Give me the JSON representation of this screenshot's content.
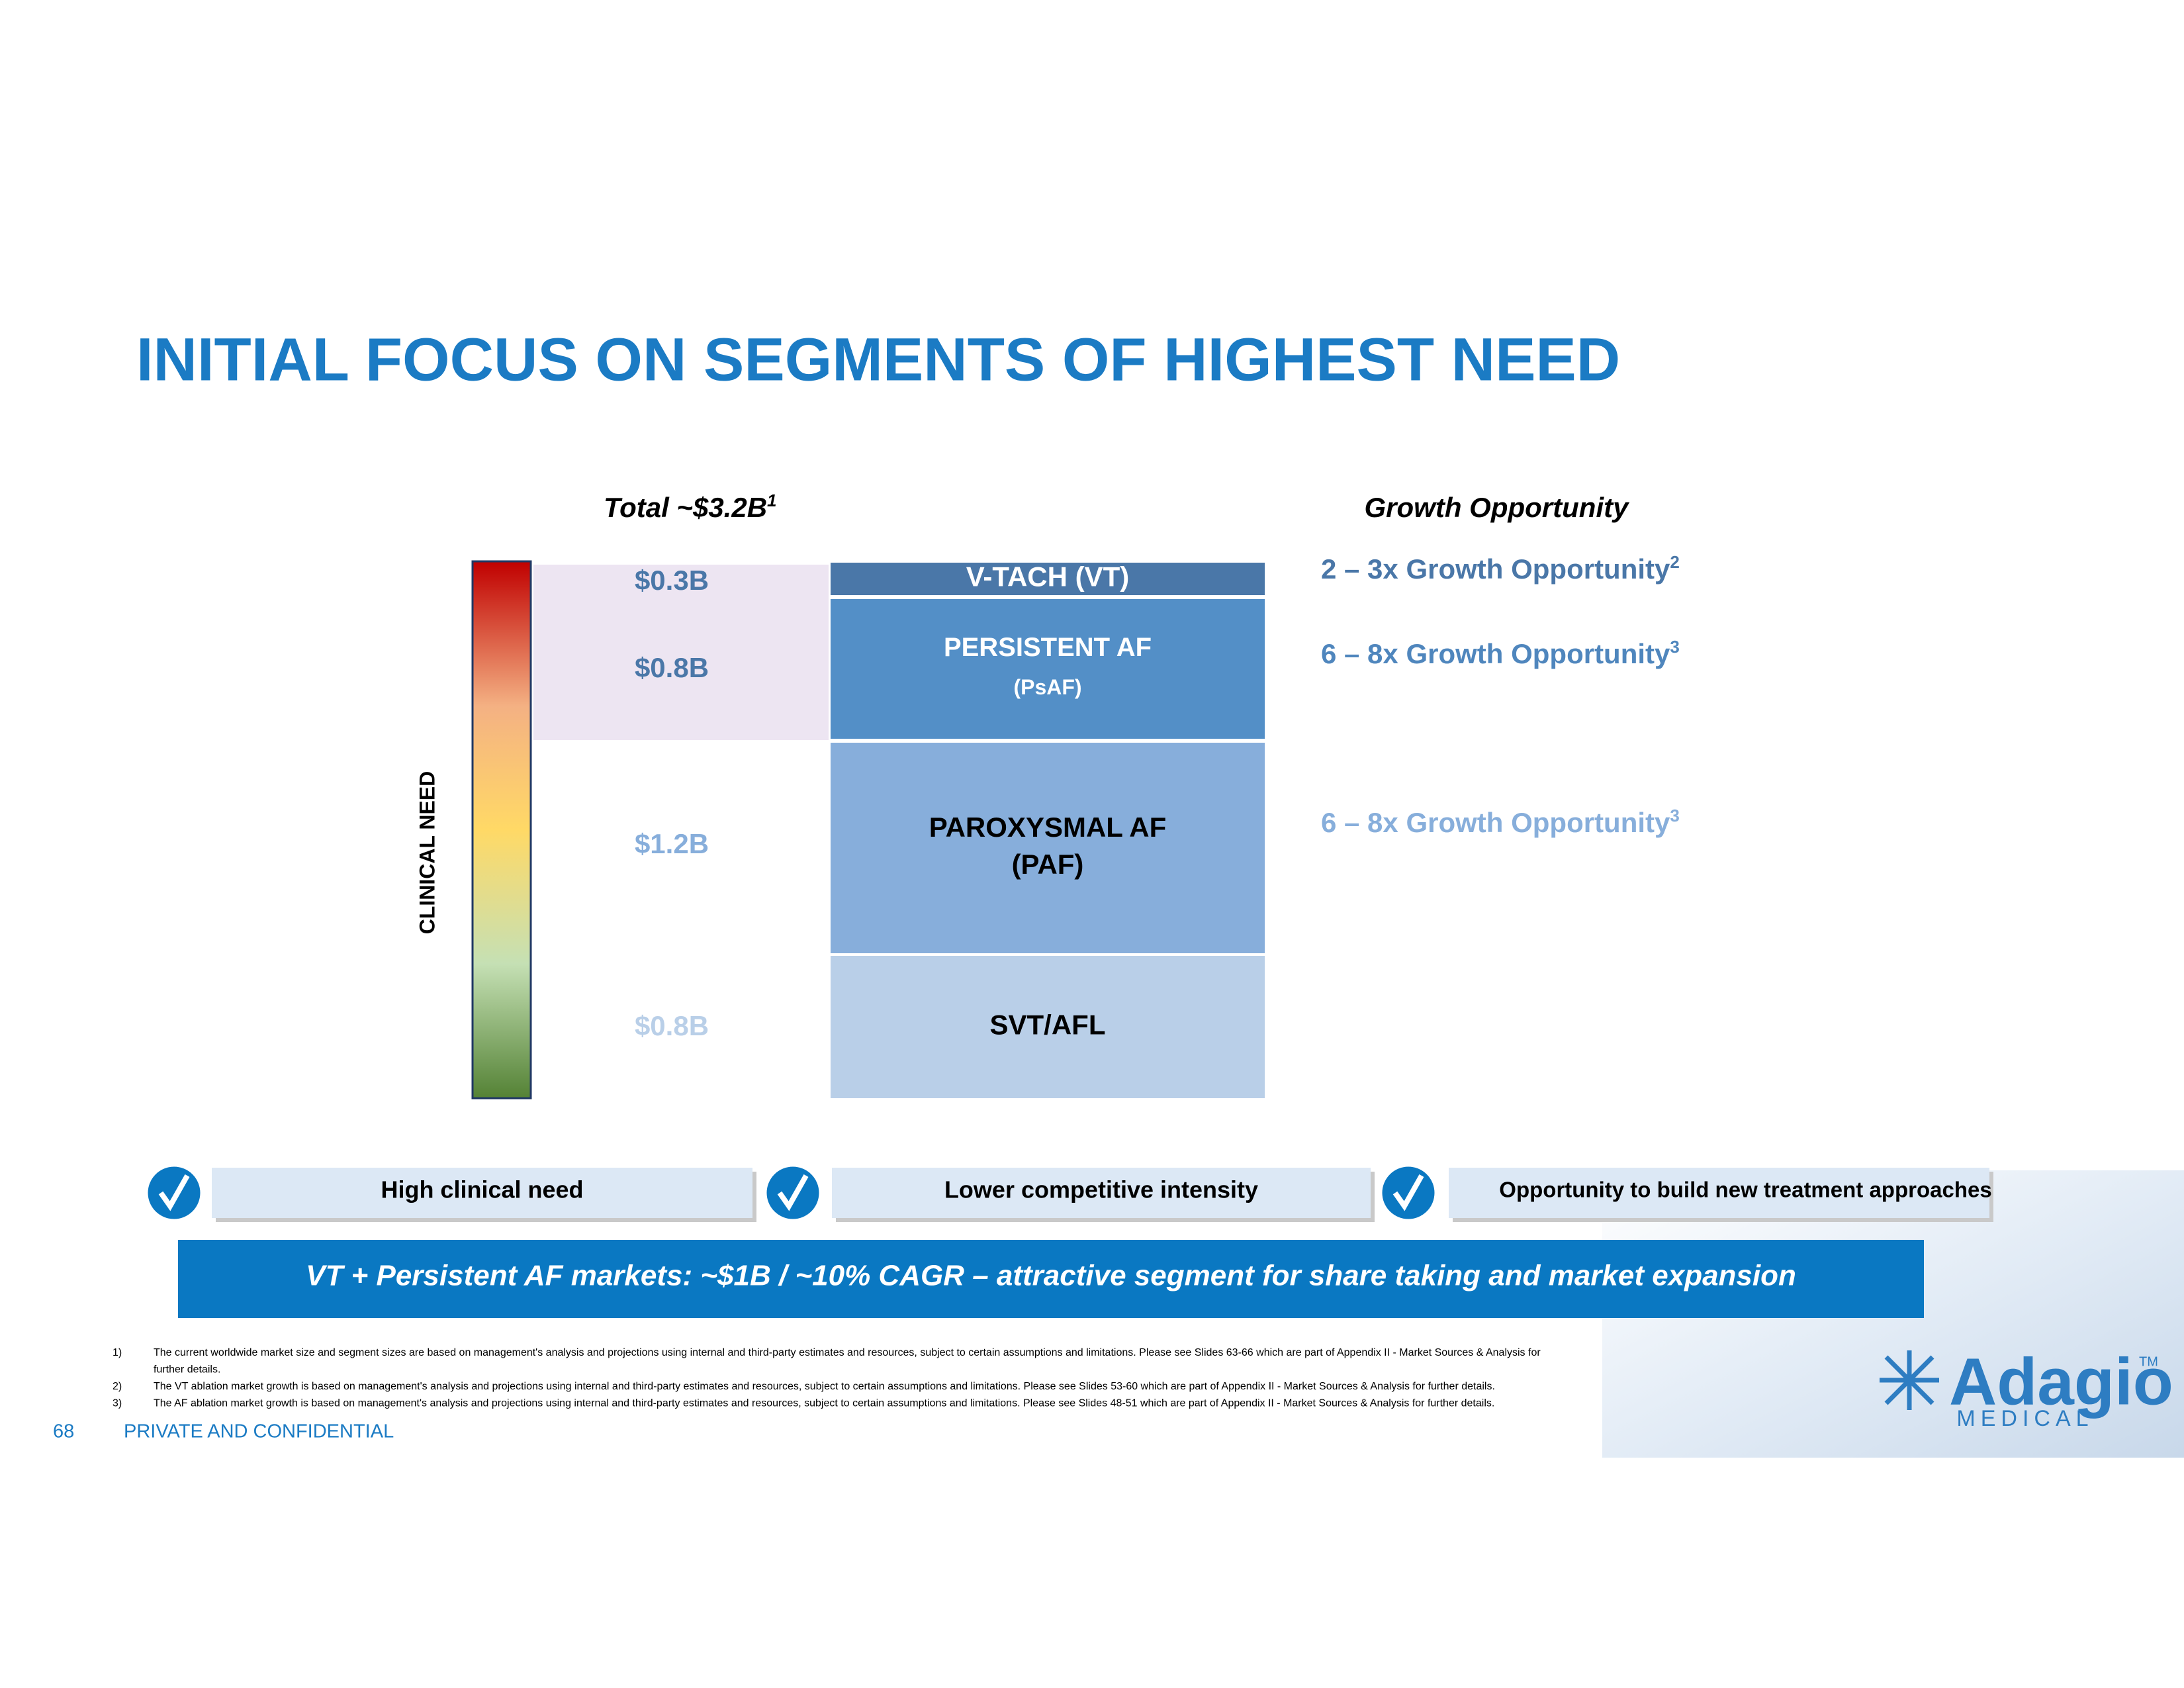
{
  "header": {
    "title": "INITIAL FOCUS ON SEGMENTS OF HIGHEST NEED"
  },
  "total": {
    "text": "Total ~$3.2B",
    "sup": "1"
  },
  "growth_header": "Growth Opportunity",
  "axis_label": "CLINICAL NEED",
  "segments": [
    {
      "value": "$0.3B",
      "name": "V-TACH (VT)",
      "growth": {
        "text": "2 – 3x Growth Opportunity",
        "sup": "2"
      }
    },
    {
      "value": "$0.8B",
      "name": "PERSISTENT AF",
      "sub": "(PsAF)",
      "growth": {
        "text": "6 – 8x Growth Opportunity",
        "sup": "3"
      }
    },
    {
      "value": "$1.2B",
      "name": "PAROXYSMAL AF",
      "sub": "(PAF)",
      "growth": {
        "text": "6 – 8x Growth Opportunity",
        "sup": "3"
      }
    },
    {
      "value": "$0.8B",
      "name": "SVT/AFL"
    }
  ],
  "checks": [
    "High clinical need",
    "Lower competitive intensity",
    "Opportunity to build new treatment approaches"
  ],
  "banner": "VT + Persistent AF markets: ~$1B / ~10% CAGR – attractive segment for share taking and market expansion",
  "footnotes": [
    {
      "num": "1)",
      "lines": [
        "The current worldwide market size and segment sizes are based on management's analysis and projections using internal and third-party estimates and resources, subject to certain assumptions and limitations. Please see Slides 63-66 which are part of Appendix II - Market Sources & Analysis for",
        "further details."
      ]
    },
    {
      "num": "2)",
      "lines": [
        "The VT ablation market growth is based on management's analysis and projections using internal and third-party estimates and resources, subject to certain assumptions and limitations. Please see Slides 53-60 which are part of Appendix II - Market Sources & Analysis for further details."
      ]
    },
    {
      "num": "3)",
      "lines": [
        "The AF ablation market growth is based on management's analysis and projections using internal and third-party estimates and resources, subject to certain assumptions and limitations. Please see Slides 48-51 which are part of Appendix II - Market Sources & Analysis for further details."
      ]
    }
  ],
  "footer": {
    "page": "68",
    "label": "PRIVATE AND CONFIDENTIAL"
  },
  "logo": {
    "name": "Adagio",
    "tm": "TM",
    "sub": "MEDICAL"
  }
}
